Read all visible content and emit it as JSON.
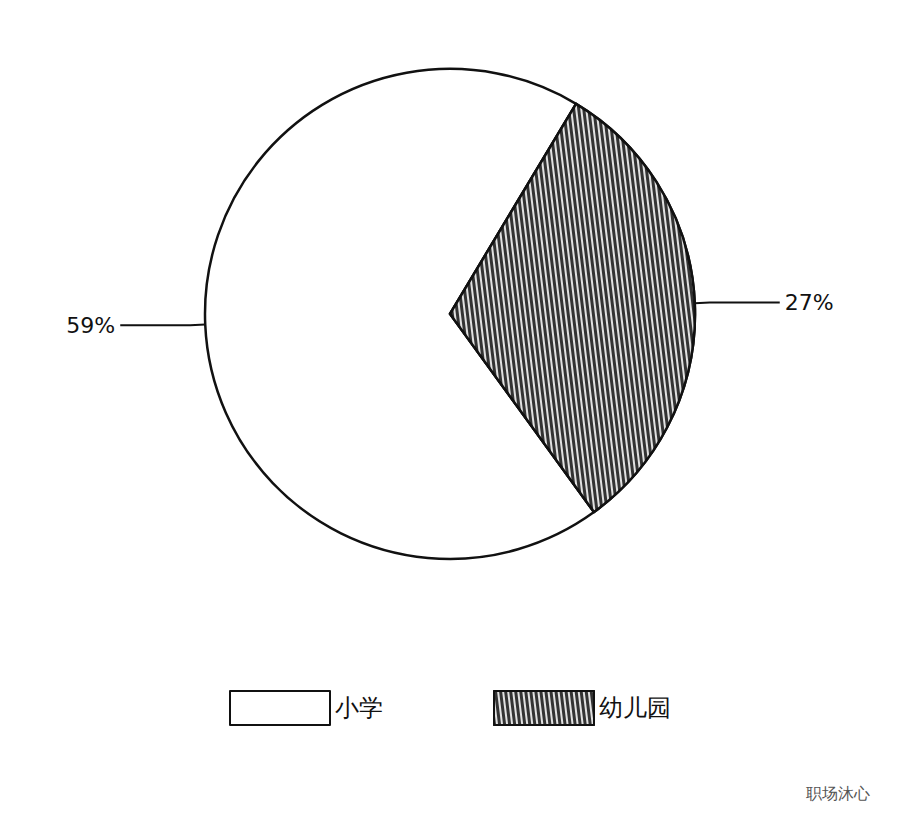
{
  "chart_data": {
    "type": "pie",
    "categories": [
      "小学",
      "幼儿园"
    ],
    "values": [
      59,
      27
    ],
    "value_labels": [
      "59%",
      "27%"
    ],
    "colors": [
      "#ffffff",
      "#333333"
    ],
    "data_labels": true,
    "legend": "bottom",
    "annotations": [
      "职场沐心"
    ]
  }
}
